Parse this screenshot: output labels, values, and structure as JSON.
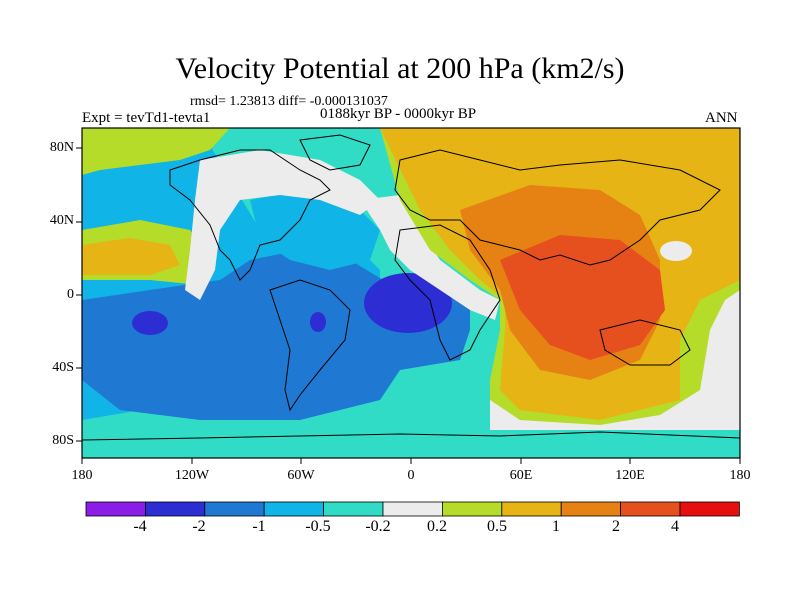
{
  "title": "Velocity Potential at 200 hPa (km2/s)",
  "stats": "rmsd= 1.23813 diff= -0.000131037",
  "experiment": "Expt = tevTd1-tevta1",
  "period": "0188kyr BP - 0000kyr BP",
  "season": "ANN",
  "axes": {
    "x_ticks": [
      "180",
      "120W",
      "60W",
      "0",
      "60E",
      "120E",
      "180"
    ],
    "y_ticks": [
      "80N",
      "40N",
      "0",
      "40S",
      "80S"
    ]
  },
  "colorbar": {
    "labels": [
      "-4",
      "-2",
      "-1",
      "-0.5",
      "-0.2",
      "0.2",
      "0.5",
      "1",
      "2",
      "4"
    ],
    "colors": [
      "#8a1ee6",
      "#2d2dd4",
      "#1f78d2",
      "#10b4e6",
      "#30dcc6",
      "#ececec",
      "#b4dc28",
      "#e6b414",
      "#e68214",
      "#e6501e",
      "#e60f0f"
    ]
  }
}
